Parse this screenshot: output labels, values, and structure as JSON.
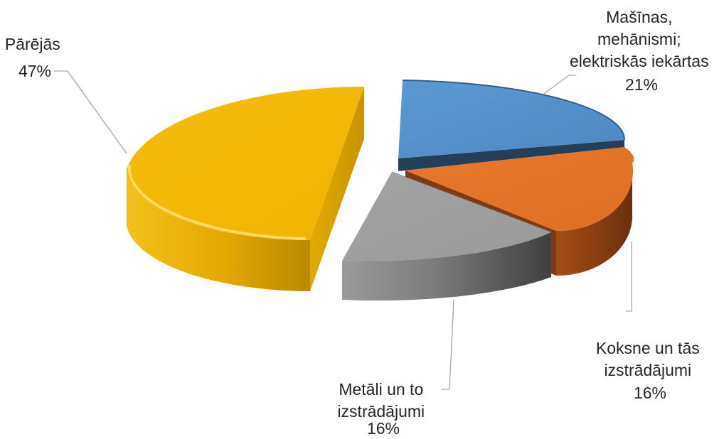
{
  "chart_data": {
    "type": "pie",
    "style": "3d-exploded",
    "legend": "none",
    "categories": [
      "Mašīnas, mehānismi; elektriskās iekārtas",
      "Koksne un tās izstrādājumi",
      "Metāli un to izstrādājumi",
      "Pārējās"
    ],
    "values": [
      21,
      16,
      16,
      47
    ],
    "value_labels": [
      "21%",
      "16%",
      "16%",
      "47%"
    ],
    "label_lines": [
      [
        "Mašīnas,",
        "mehānismi;",
        "elektriskās iekārtas"
      ],
      [
        "Koksne un tās",
        "izstrādājumi"
      ],
      [
        "Metāli un to",
        "izstrādājumi"
      ],
      [
        "Pārējās"
      ]
    ],
    "colors": [
      "#5B9BD5",
      "#ED7D31",
      "#A5A5A5",
      "#FFC000"
    ]
  }
}
